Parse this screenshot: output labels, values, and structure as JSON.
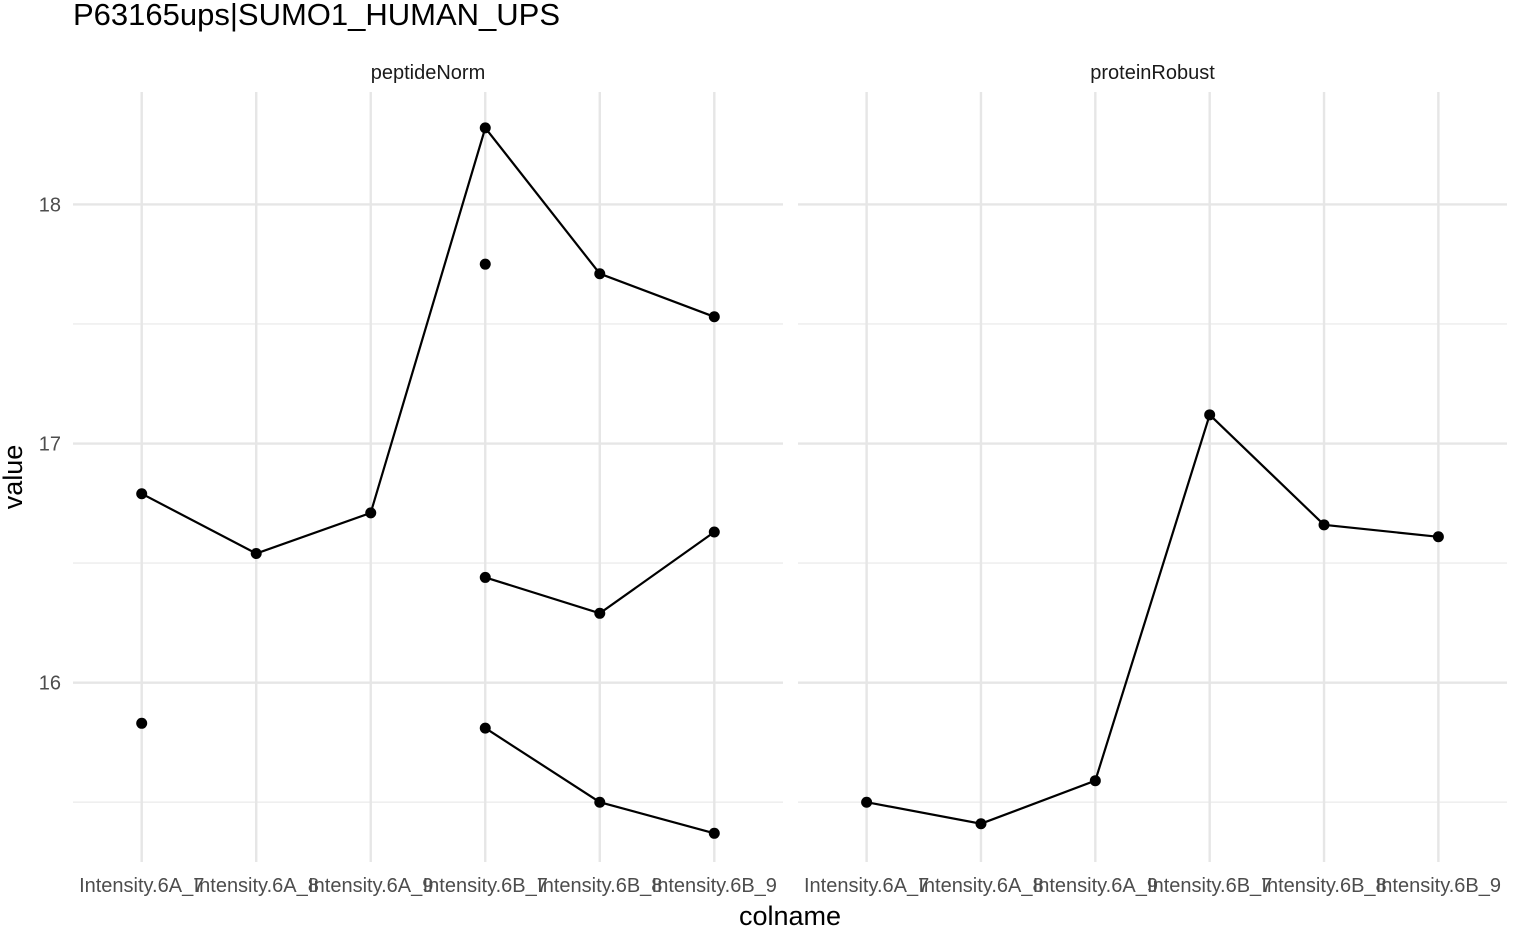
{
  "chart_data": {
    "type": "line",
    "title": "P63165ups|SUMO1_HUMAN_UPS",
    "xlabel": "colname",
    "ylabel": "value",
    "categories": [
      "Intensity.6A_7",
      "Intensity.6A_8",
      "Intensity.6A_9",
      "Intensity.6B_7",
      "Intensity.6B_8",
      "Intensity.6B_9"
    ],
    "ylim": [
      15.25,
      18.47
    ],
    "yticks": [
      16,
      17,
      18
    ],
    "grid": true,
    "legend": "none",
    "panels": [
      {
        "label": "peptideNorm",
        "series": [
          {
            "values": [
              16.79,
              16.54,
              16.71,
              18.32,
              17.71,
              17.53
            ]
          },
          {
            "values": [
              null,
              null,
              null,
              17.75,
              null,
              null
            ]
          },
          {
            "values": [
              null,
              null,
              null,
              16.44,
              16.29,
              16.63
            ]
          },
          {
            "values": [
              15.83,
              null,
              null,
              15.81,
              15.5,
              15.37
            ]
          }
        ]
      },
      {
        "label": "proteinRobust",
        "series": [
          {
            "values": [
              15.5,
              15.41,
              15.59,
              17.12,
              16.66,
              16.61
            ]
          }
        ]
      }
    ]
  }
}
